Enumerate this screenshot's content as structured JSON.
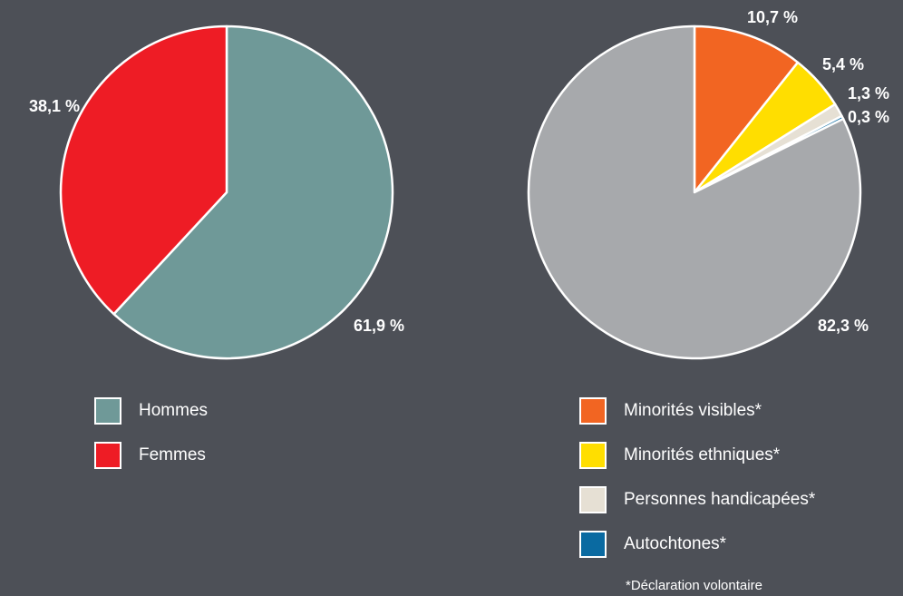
{
  "chart_data": [
    {
      "type": "pie",
      "categories": [
        "Hommes",
        "Femmes"
      ],
      "values": [
        61.9,
        38.1
      ],
      "value_labels": [
        "61,9 %",
        "38,1 %"
      ],
      "colors": [
        "#6f9998",
        "#ee1c25"
      ]
    },
    {
      "type": "pie",
      "categories": [
        "Minorités visibles*",
        "Minorités ethniques*",
        "Personnes handicapées*",
        "Autochtones*",
        null
      ],
      "values": [
        10.7,
        5.4,
        1.3,
        0.3,
        82.3
      ],
      "value_labels": [
        "10,7 %",
        "5,4 %",
        "1,3 %",
        "0,3 %",
        "82,3 %"
      ],
      "colors": [
        "#f26522",
        "#ffde00",
        "#e6e0d4",
        "#0a6aa1",
        "#a7a9ac"
      ],
      "annotations": [
        "*Déclaration volontaire"
      ]
    }
  ]
}
